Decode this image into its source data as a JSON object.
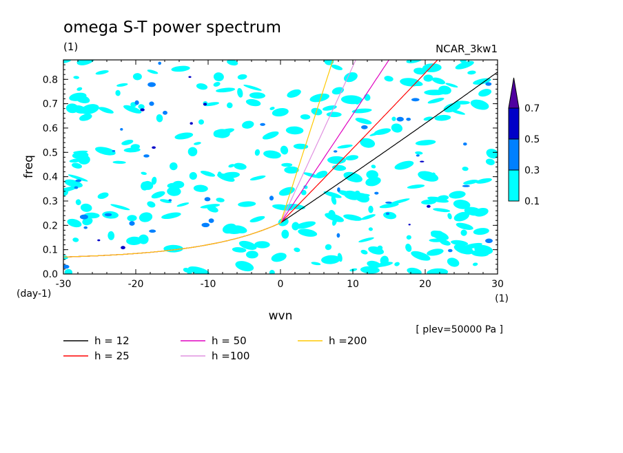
{
  "chart_data": {
    "type": "contour",
    "title": "omega S-T power spectrum",
    "subtitle_left": "(1)",
    "subtitle_right": "NCAR_3kw1",
    "xlabel": "wvn",
    "ylabel": "freq",
    "x_unit_label": "(1)",
    "y_unit_label": "(day-1)",
    "xlim": [
      -30,
      30
    ],
    "ylim": [
      0,
      0.88
    ],
    "x_ticks": [
      "-30",
      "-20",
      "-10",
      "0",
      "10",
      "20",
      "30"
    ],
    "y_ticks": [
      "0.0",
      "0.1",
      "0.2",
      "0.3",
      "0.4",
      "0.5",
      "0.6",
      "0.7",
      "0.8"
    ],
    "annotation": "[ plev=50000 Pa ]",
    "colorbar": {
      "levels": [
        "0.1",
        "0.3",
        "0.5",
        "0.7"
      ],
      "colors": [
        "#00ffff",
        "#0080ff",
        "#0000c8",
        "#5000a0"
      ]
    },
    "dispersion_curves": [
      {
        "name": "h = 12",
        "h": 12,
        "color": "#000000"
      },
      {
        "name": "h = 25",
        "h": 25,
        "color": "#ff0000"
      },
      {
        "name": "h = 50",
        "h": 50,
        "color": "#e000c0"
      },
      {
        "name": "h =100",
        "h": 100,
        "color": "#e090e0"
      },
      {
        "name": "h =200",
        "h": 200,
        "color": "#ffc800"
      }
    ]
  }
}
